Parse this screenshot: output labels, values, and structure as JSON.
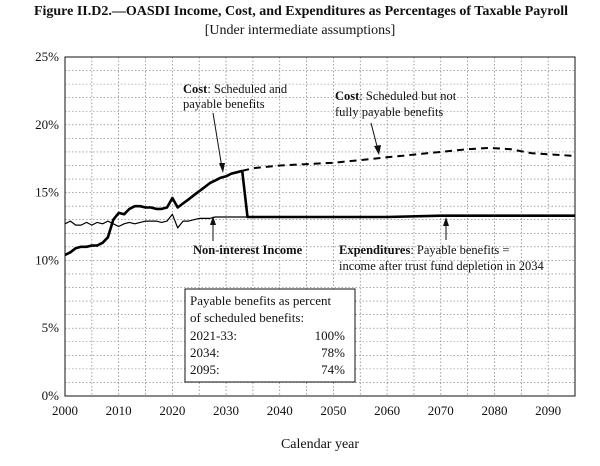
{
  "figure": {
    "title": "Figure II.D2.—OASDI Income, Cost, and Expenditures as Percentages of Taxable Payroll",
    "subtitle": "[Under intermediate assumptions]"
  },
  "chart_data": {
    "type": "line",
    "title": "Figure II.D2.—OASDI Income, Cost, and Expenditures as Percentages of Taxable Payroll",
    "subtitle": "[Under intermediate assumptions]",
    "xlabel": "Calendar year",
    "ylabel": "",
    "xlim": [
      2000,
      2095
    ],
    "ylim": [
      0,
      25
    ],
    "x_ticks": [
      "2000",
      "2010",
      "2020",
      "2030",
      "2040",
      "2050",
      "2060",
      "2070",
      "2080",
      "2090"
    ],
    "y_ticks": [
      "0%",
      "5%",
      "10%",
      "15%",
      "20%",
      "25%"
    ],
    "grid": "dotted",
    "series": [
      {
        "label": "Cost: Scheduled and payable benefits",
        "style": "thick-solid",
        "points": [
          [
            2000,
            10.4
          ],
          [
            2001,
            10.6
          ],
          [
            2002,
            10.9
          ],
          [
            2003,
            11.0
          ],
          [
            2004,
            11.0
          ],
          [
            2005,
            11.1
          ],
          [
            2006,
            11.1
          ],
          [
            2007,
            11.3
          ],
          [
            2008,
            11.7
          ],
          [
            2009,
            13.0
          ],
          [
            2010,
            13.5
          ],
          [
            2011,
            13.4
          ],
          [
            2012,
            13.8
          ],
          [
            2013,
            14.0
          ],
          [
            2014,
            14.0
          ],
          [
            2015,
            13.9
          ],
          [
            2016,
            13.9
          ],
          [
            2017,
            13.8
          ],
          [
            2018,
            13.8
          ],
          [
            2019,
            13.9
          ],
          [
            2020,
            14.6
          ],
          [
            2021,
            13.9
          ],
          [
            2022,
            14.2
          ],
          [
            2023,
            14.5
          ],
          [
            2024,
            14.8
          ],
          [
            2025,
            15.1
          ],
          [
            2026,
            15.4
          ],
          [
            2027,
            15.7
          ],
          [
            2028,
            15.9
          ],
          [
            2029,
            16.1
          ],
          [
            2030,
            16.2
          ],
          [
            2031,
            16.4
          ],
          [
            2032,
            16.5
          ],
          [
            2033,
            16.6
          ]
        ]
      },
      {
        "label": "Cost: Scheduled but not fully payable benefits",
        "style": "dashed",
        "points": [
          [
            2033,
            16.6
          ],
          [
            2035,
            16.8
          ],
          [
            2040,
            17.0
          ],
          [
            2045,
            17.1
          ],
          [
            2050,
            17.2
          ],
          [
            2055,
            17.4
          ],
          [
            2060,
            17.6
          ],
          [
            2065,
            17.8
          ],
          [
            2070,
            18.0
          ],
          [
            2075,
            18.2
          ],
          [
            2079,
            18.3
          ],
          [
            2083,
            18.2
          ],
          [
            2087,
            17.9
          ],
          [
            2091,
            17.8
          ],
          [
            2095,
            17.7
          ]
        ]
      },
      {
        "label": "Non-interest Income",
        "style": "thin-solid",
        "points": [
          [
            2000,
            12.7
          ],
          [
            2001,
            12.9
          ],
          [
            2002,
            12.6
          ],
          [
            2003,
            12.6
          ],
          [
            2004,
            12.8
          ],
          [
            2005,
            12.6
          ],
          [
            2006,
            12.8
          ],
          [
            2007,
            12.7
          ],
          [
            2008,
            12.9
          ],
          [
            2009,
            12.7
          ],
          [
            2010,
            12.5
          ],
          [
            2011,
            12.7
          ],
          [
            2012,
            12.8
          ],
          [
            2013,
            12.7
          ],
          [
            2014,
            12.8
          ],
          [
            2015,
            12.9
          ],
          [
            2016,
            12.9
          ],
          [
            2017,
            12.9
          ],
          [
            2018,
            12.8
          ],
          [
            2019,
            12.9
          ],
          [
            2020,
            13.4
          ],
          [
            2021,
            12.4
          ],
          [
            2022,
            12.9
          ],
          [
            2023,
            12.9
          ],
          [
            2024,
            13.0
          ],
          [
            2025,
            13.1
          ],
          [
            2026,
            13.1
          ],
          [
            2027,
            13.1
          ],
          [
            2028,
            13.2
          ],
          [
            2029,
            13.2
          ],
          [
            2030,
            13.2
          ],
          [
            2033,
            13.2
          ],
          [
            2040,
            13.2
          ],
          [
            2050,
            13.2
          ],
          [
            2060,
            13.2
          ],
          [
            2070,
            13.3
          ],
          [
            2080,
            13.3
          ],
          [
            2090,
            13.3
          ],
          [
            2095,
            13.3
          ]
        ]
      },
      {
        "label": "Expenditures: Payable benefits = income after trust fund depletion in 2034",
        "style": "thick-solid",
        "points": [
          [
            2033,
            16.6
          ],
          [
            2034,
            13.2
          ],
          [
            2040,
            13.2
          ],
          [
            2050,
            13.2
          ],
          [
            2060,
            13.2
          ],
          [
            2070,
            13.3
          ],
          [
            2080,
            13.3
          ],
          [
            2090,
            13.3
          ],
          [
            2095,
            13.3
          ]
        ]
      }
    ],
    "annotations": {
      "cost_payable": {
        "bold": "Cost",
        "rest": ": Scheduled and",
        "line2": "payable benefits"
      },
      "cost_not_payable": {
        "bold": "Cost",
        "rest": ": Scheduled but not",
        "line2": "fully payable benefits"
      },
      "income": {
        "text": "Non-interest Income"
      },
      "expenditures": {
        "bold": "Expenditures",
        "rest": ": Payable benefits =",
        "line2": "income after trust fund depletion in 2034"
      }
    },
    "table": {
      "header1": "Payable benefits as percent",
      "header2": "of scheduled benefits:",
      "rows": [
        {
          "label": "2021-33:",
          "value": "100%"
        },
        {
          "label": "2034:",
          "value": "78%"
        },
        {
          "label": "2095:",
          "value": "74%"
        }
      ]
    }
  }
}
